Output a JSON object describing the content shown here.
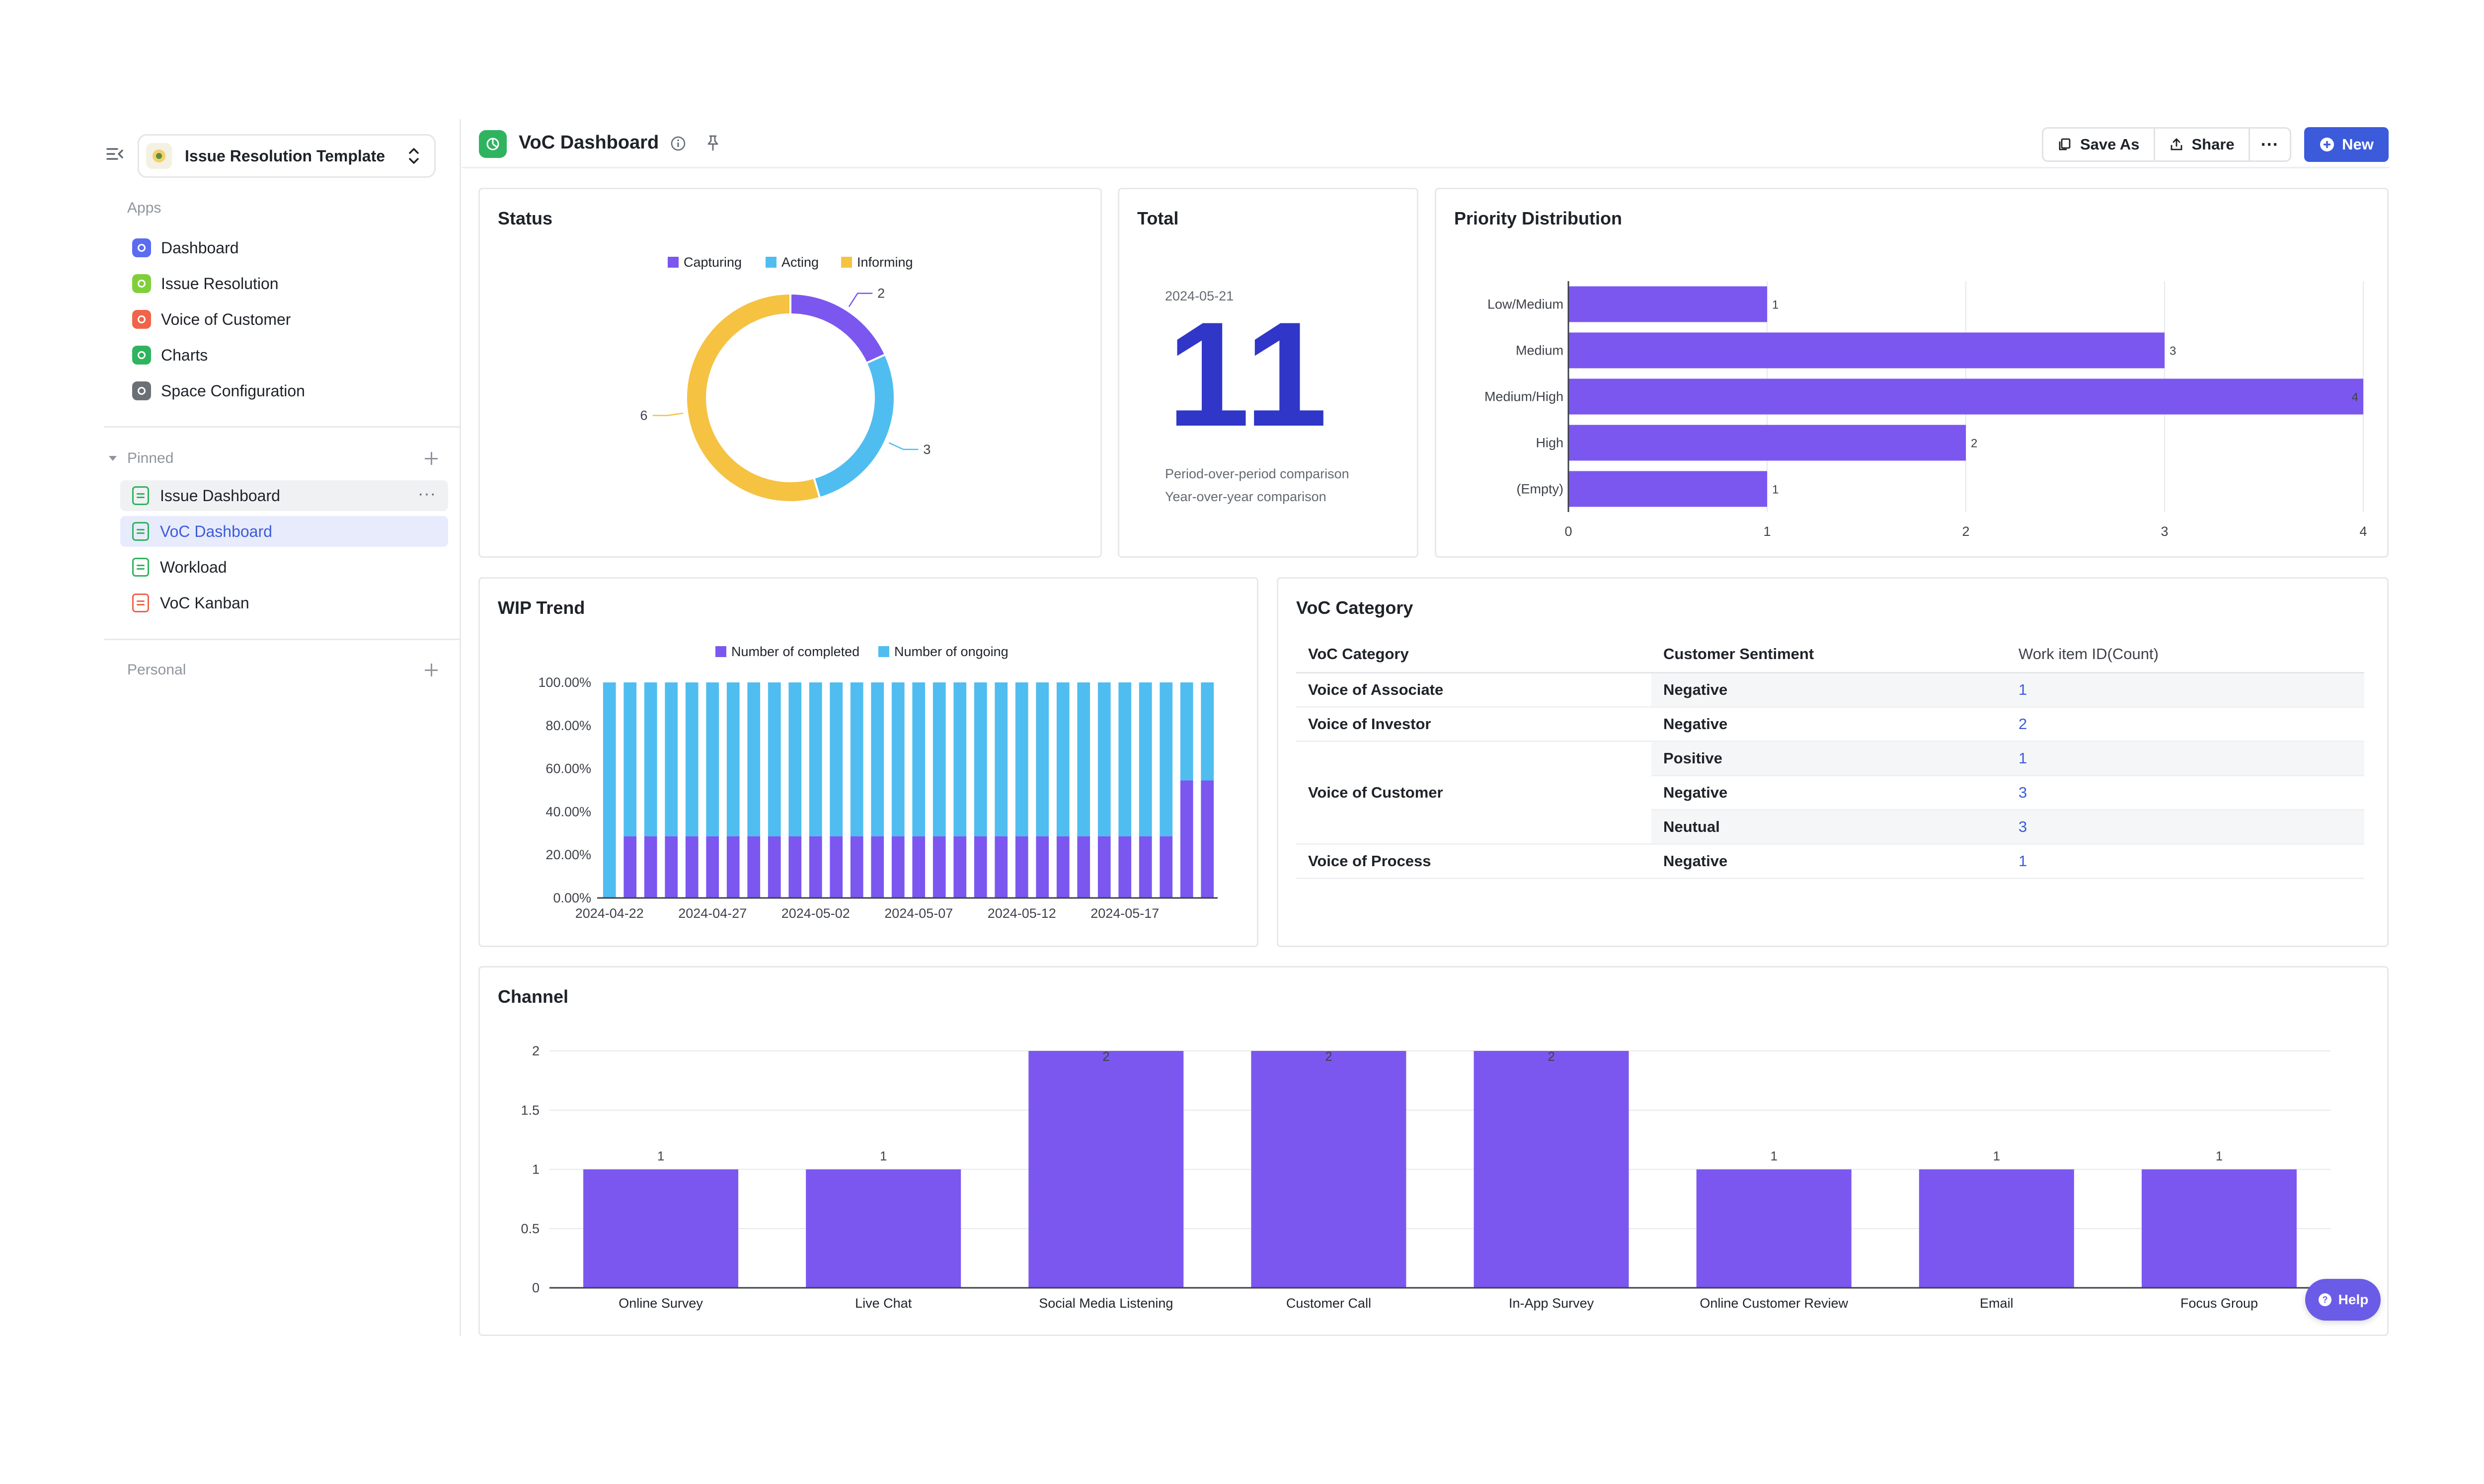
{
  "sidebar": {
    "space_name": "Issue Resolution Template",
    "apps_label": "Apps",
    "apps": [
      {
        "label": "Dashboard",
        "color": "#5b6cf0"
      },
      {
        "label": "Issue Resolution",
        "color": "#7fcf3a"
      },
      {
        "label": "Voice of Customer",
        "color": "#f0644a"
      },
      {
        "label": "Charts",
        "color": "#2fb35f"
      },
      {
        "label": "Space Configuration",
        "color": "#6b6f76"
      }
    ],
    "pinned_label": "Pinned",
    "pinned": [
      {
        "label": "Issue Dashboard",
        "icon_color": "#2fb35f"
      },
      {
        "label": "VoC Dashboard",
        "icon_color": "#2fb35f"
      },
      {
        "label": "Workload",
        "icon_color": "#2fb35f"
      },
      {
        "label": "VoC Kanban",
        "icon_color": "#f0644a"
      }
    ],
    "personal_label": "Personal"
  },
  "header": {
    "title": "VoC Dashboard",
    "save_as": "Save As",
    "share": "Share",
    "new": "New"
  },
  "status_card": {
    "title": "Status",
    "chart_data": {
      "type": "pie",
      "donut": true,
      "legend": "top",
      "series": [
        {
          "name": "Capturing",
          "value": 2,
          "color": "#7b57f0"
        },
        {
          "name": "Acting",
          "value": 3,
          "color": "#4fbdf0"
        },
        {
          "name": "Informing",
          "value": 6,
          "color": "#f5c242"
        }
      ]
    }
  },
  "total_card": {
    "title": "Total",
    "date": "2024-05-21",
    "value": "11",
    "period_comparison": "Period-over-period comparison",
    "year_comparison": "Year-over-year comparison"
  },
  "priority_card": {
    "title": "Priority Distribution",
    "chart_data": {
      "type": "bar",
      "orientation": "horizontal",
      "categories": [
        "Low/Medium",
        "Medium",
        "Medium/High",
        "High",
        "(Empty)"
      ],
      "values": [
        1,
        3,
        4,
        2,
        1
      ],
      "xlim": [
        0,
        4
      ],
      "xticks": [
        "0",
        "1",
        "2",
        "3",
        "4"
      ],
      "grid": true,
      "color": "#7b57f0"
    }
  },
  "wip_card": {
    "title": "WIP Trend",
    "chart_data": {
      "type": "bar",
      "stacked": true,
      "percent": true,
      "legend": "top",
      "series_names": [
        "Number of completed",
        "Number of ongoing"
      ],
      "colors": [
        "#7b57f0",
        "#4fbdf0"
      ],
      "completed_pct": [
        0,
        28.6,
        28.6,
        28.6,
        28.6,
        28.6,
        28.6,
        28.6,
        28.6,
        28.6,
        28.6,
        28.6,
        28.6,
        28.6,
        28.6,
        28.6,
        28.6,
        28.6,
        28.6,
        28.6,
        28.6,
        28.6,
        28.6,
        28.6,
        28.6,
        28.6,
        28.6,
        28.6,
        54.5,
        54.5
      ],
      "yticks": [
        "0.00%",
        "20.00%",
        "40.00%",
        "60.00%",
        "80.00%",
        "100.00%"
      ],
      "xticks": [
        "2024-04-22",
        "2024-04-27",
        "2024-05-02",
        "2024-05-07",
        "2024-05-12",
        "2024-05-17"
      ]
    }
  },
  "category_card": {
    "title": "VoC Category",
    "columns": [
      "VoC Category",
      "Customer Sentiment",
      "Work item ID(Count)"
    ],
    "rows": [
      {
        "category": "Voice of Associate",
        "sentiment": "Negative",
        "count": "1"
      },
      {
        "category": "Voice of Investor",
        "sentiment": "Negative",
        "count": "2"
      },
      {
        "category": "Voice of Customer",
        "sentiment": "Positive",
        "count": "1"
      },
      {
        "category": "",
        "sentiment": "Negative",
        "count": "3"
      },
      {
        "category": "",
        "sentiment": "Neutual",
        "count": "3"
      },
      {
        "category": "Voice of Process",
        "sentiment": "Negative",
        "count": "1"
      }
    ]
  },
  "channel_card": {
    "title": "Channel",
    "chart_data": {
      "type": "bar",
      "categories": [
        "Online Survey",
        "Live Chat",
        "Social Media Listening",
        "Customer Call",
        "In-App Survey",
        "Online Customer Review",
        "Email",
        "Focus Group"
      ],
      "values": [
        1,
        1,
        2,
        2,
        2,
        1,
        1,
        1
      ],
      "ylim": [
        0,
        2
      ],
      "yticks": [
        "0",
        "0.5",
        "1",
        "1.5",
        "2"
      ],
      "grid": true,
      "color": "#7b57f0"
    }
  },
  "help": {
    "label": "Help"
  }
}
